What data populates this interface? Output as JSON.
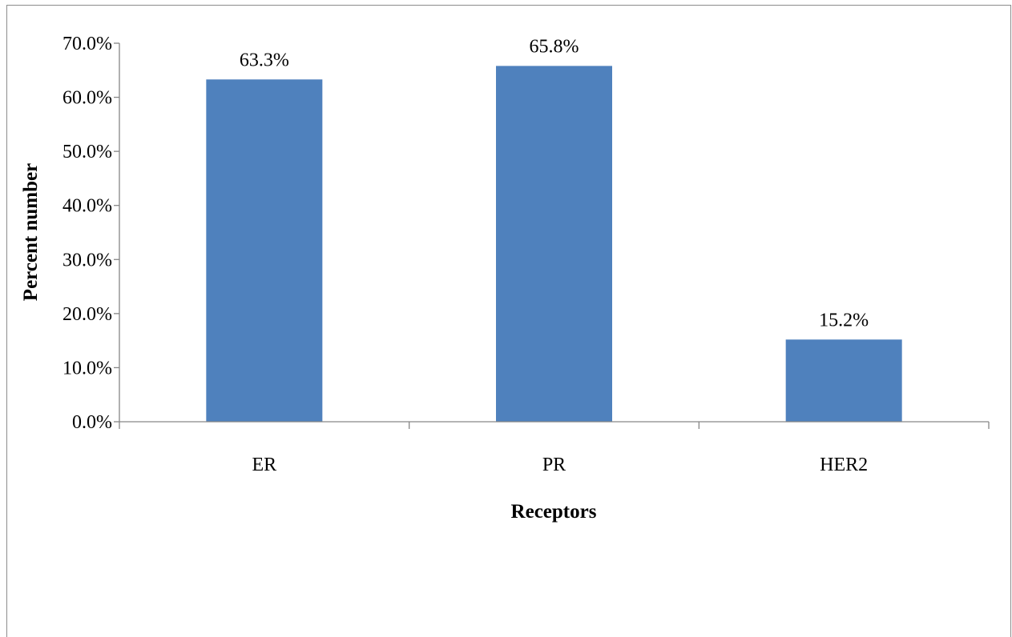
{
  "chart_data": {
    "type": "bar",
    "categories": [
      "ER",
      "PR",
      "HER2"
    ],
    "values": [
      63.3,
      65.8,
      15.2
    ],
    "data_labels": [
      "63.3%",
      "65.8%",
      "15.2%"
    ],
    "title": "",
    "xlabel": "Receptors",
    "ylabel": "Percent number",
    "ylim": [
      0,
      70
    ],
    "yticks": [
      0,
      10,
      20,
      30,
      40,
      50,
      60,
      70
    ],
    "ytick_labels": [
      "0.0%",
      "10.0%",
      "20.0%",
      "30.0%",
      "40.0%",
      "50.0%",
      "60.0%",
      "70.0%"
    ],
    "grid": false,
    "legend": "none",
    "bar_color": "#4f81bd"
  }
}
